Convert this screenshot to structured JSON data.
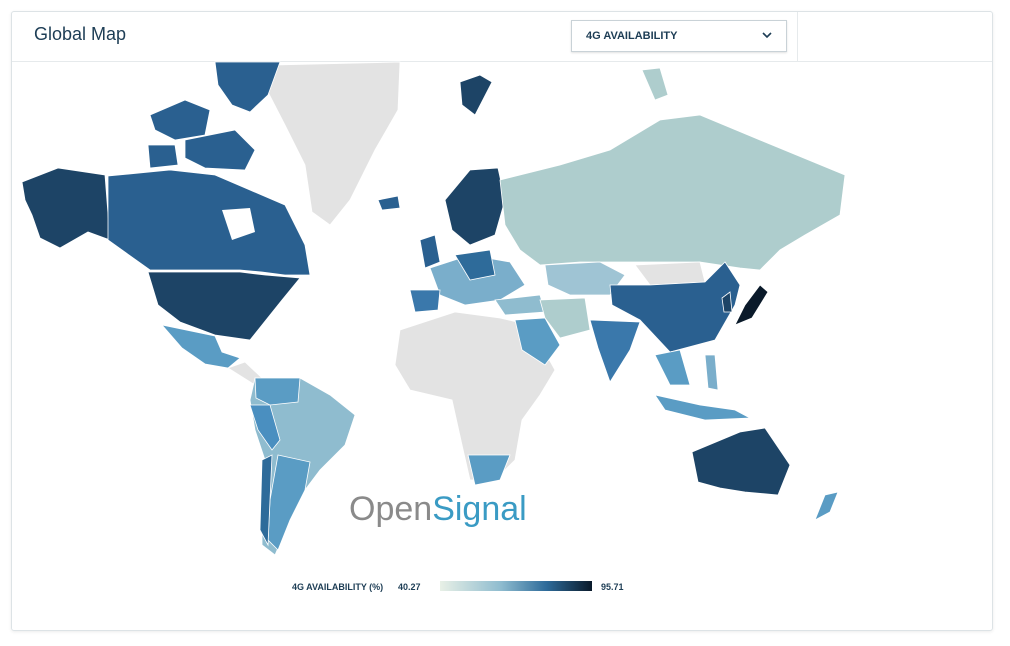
{
  "header": {
    "title": "Global Map",
    "dropdown": "4G AVAILABILITY"
  },
  "map": {
    "watermark": {
      "part1": "Open",
      "part2": "Signal"
    }
  },
  "legend": {
    "label": "4G AVAILABILITY (%)",
    "min": 40.27,
    "max": 95.71
  }
}
